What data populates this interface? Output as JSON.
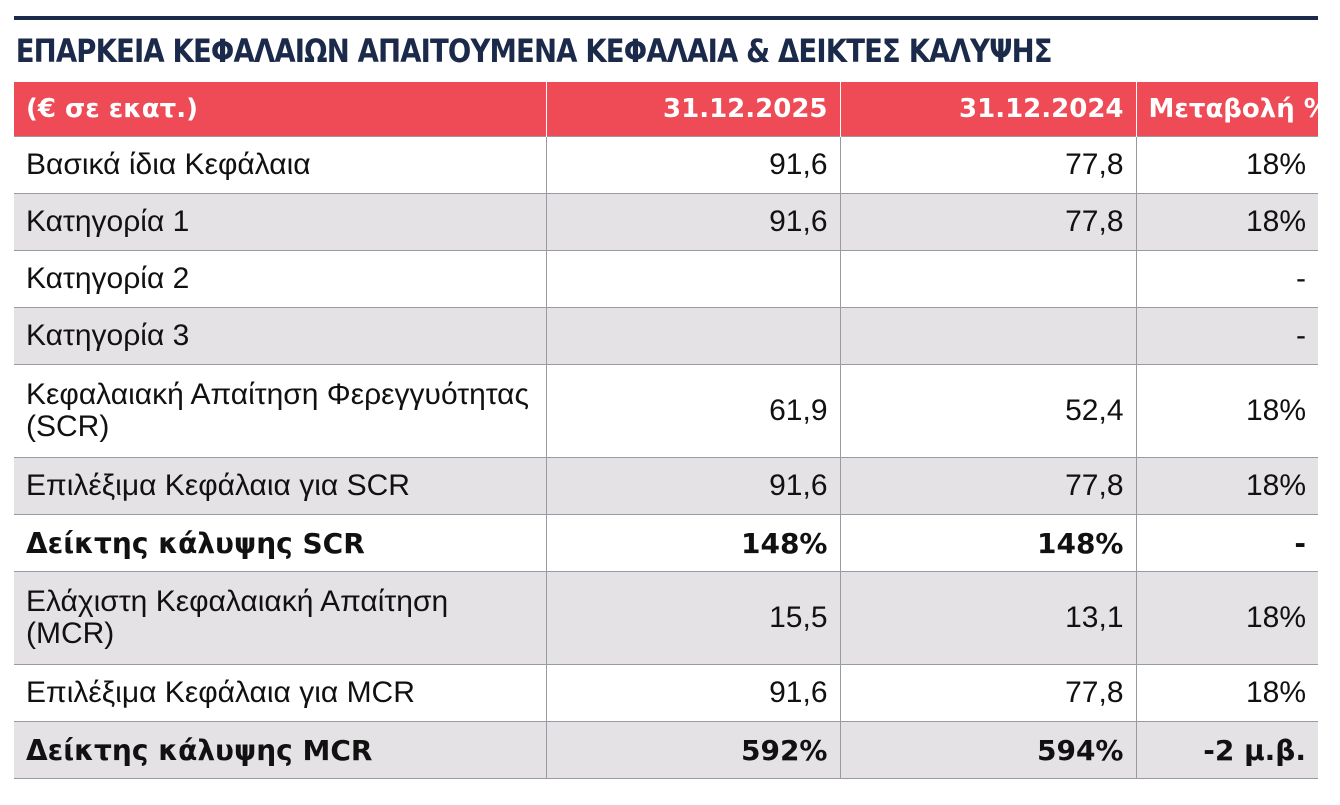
{
  "title": "ΕΠΑΡΚΕΙΑ ΚΕΦΑΛΑΙΩΝ ΑΠΑΙΤΟΥΜΕΝΑ ΚΕΦΑΛΑΙΑ & ΔΕΙΚΤΕΣ ΚΑΛΥΨΗΣ",
  "colors": {
    "title": "#1b2a4a",
    "header_bg": "#ee4b57",
    "row_shade": "#e5e2e6"
  },
  "table": {
    "headers": [
      "(€ σε εκατ.)",
      "31.12.2025",
      "31.12.2024",
      "Μεταβολή %"
    ],
    "rows": [
      {
        "label": "Βασικά ίδια Κεφάλαια",
        "v2025": "91,6",
        "v2024": "77,8",
        "change": "18%"
      },
      {
        "label": "Κατηγορία 1",
        "v2025": "91,6",
        "v2024": "77,8",
        "change": "18%"
      },
      {
        "label": "Κατηγορία 2",
        "v2025": "",
        "v2024": "",
        "change": "-"
      },
      {
        "label": "Κατηγορία 3",
        "v2025": "",
        "v2024": "",
        "change": "-"
      },
      {
        "label": "Κεφαλαιακή Απαίτηση Φερεγγυότητας (SCR)",
        "v2025": "61,9",
        "v2024": "52,4",
        "change": "18%"
      },
      {
        "label": "Επιλέξιμα Κεφάλαια για SCR",
        "v2025": "91,6",
        "v2024": "77,8",
        "change": "18%"
      },
      {
        "label": "Δείκτης κάλυψης SCR",
        "v2025": "148%",
        "v2024": "148%",
        "change": "-"
      },
      {
        "label": "Ελάχιστη Κεφαλαιακή Απαίτηση (MCR)",
        "v2025": "15,5",
        "v2024": "13,1",
        "change": "18%"
      },
      {
        "label": "Επιλέξιμα Κεφάλαια για MCR",
        "v2025": "91,6",
        "v2024": "77,8",
        "change": "18%"
      },
      {
        "label": "Δείκτης κάλυψης MCR",
        "v2025": "592%",
        "v2024": "594%",
        "change": "-2 μ.β."
      }
    ]
  }
}
